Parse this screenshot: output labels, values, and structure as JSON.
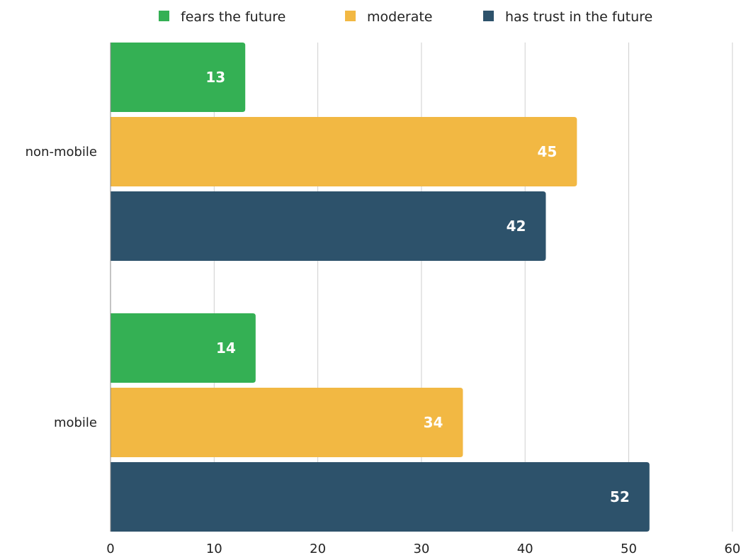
{
  "chart_data": {
    "type": "bar",
    "orientation": "horizontal",
    "categories": [
      "non-mobile",
      "mobile"
    ],
    "series": [
      {
        "name": "fears the future",
        "color": "#34b054",
        "values": [
          13,
          14
        ]
      },
      {
        "name": "moderate",
        "color": "#f2b843",
        "values": [
          45,
          34
        ]
      },
      {
        "name": "has trust in the future",
        "color": "#2d526b",
        "values": [
          42,
          52
        ]
      }
    ],
    "xlim": [
      0,
      60
    ],
    "xticks": [
      "0",
      "10",
      "20",
      "30",
      "40",
      "50",
      "60"
    ],
    "grid": true,
    "legend_position": "top",
    "data_labels": true,
    "title": "",
    "xlabel": "",
    "ylabel": ""
  }
}
